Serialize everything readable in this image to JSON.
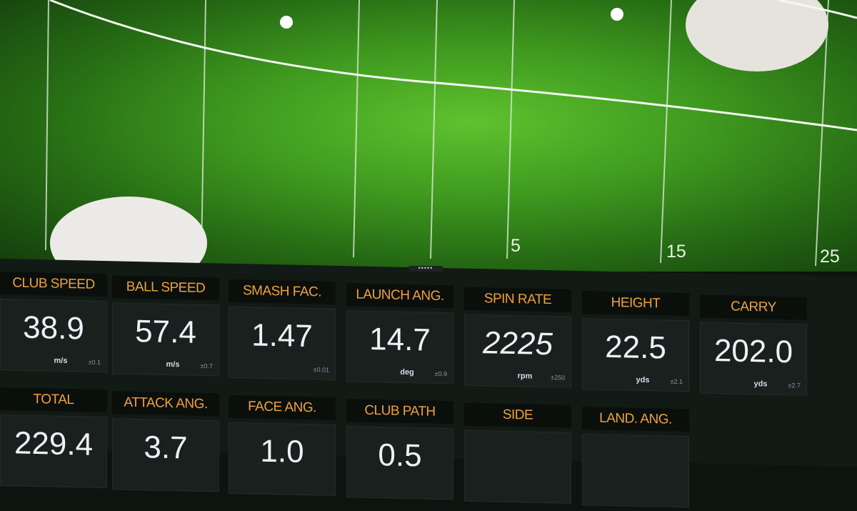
{
  "field": {
    "distance_labels": [
      "5",
      "15",
      "25"
    ]
  },
  "metrics": [
    {
      "label": "CLUB SPEED",
      "value": "38.9",
      "unit": "m/s",
      "tolerance": "±0.1"
    },
    {
      "label": "BALL SPEED",
      "value": "57.4",
      "unit": "m/s",
      "tolerance": "±0.7"
    },
    {
      "label": "SMASH FAC.",
      "value": "1.47",
      "unit": "",
      "tolerance": "±0.01"
    },
    {
      "label": "LAUNCH ANG.",
      "value": "14.7",
      "unit": "deg",
      "tolerance": "±0.9"
    },
    {
      "label": "SPIN RATE",
      "value": "2225",
      "unit": "rpm",
      "tolerance": "±250"
    },
    {
      "label": "HEIGHT",
      "value": "22.5",
      "unit": "yds",
      "tolerance": "±2.1"
    },
    {
      "label": "CARRY",
      "value": "202.0",
      "unit": "yds",
      "tolerance": "±2.7"
    }
  ],
  "metrics_row2": [
    {
      "label": "TOTAL",
      "value": "229.4"
    },
    {
      "label": "ATTACK ANG.",
      "value": "3.7"
    },
    {
      "label": "FACE ANG.",
      "value": "1.0"
    },
    {
      "label": "CLUB PATH",
      "value": "0.5"
    },
    {
      "label": "SIDE",
      "value": ""
    },
    {
      "label": "LAND. ANG.",
      "value": ""
    }
  ],
  "colors": {
    "label": "#f0a040",
    "value": "#eef0f8",
    "field": "#4fae25"
  }
}
